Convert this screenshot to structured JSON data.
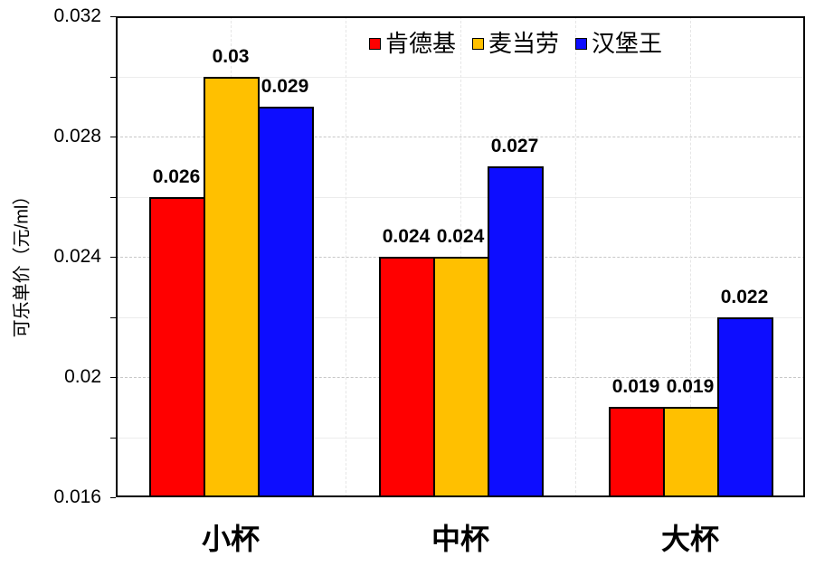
{
  "chart_data": {
    "type": "bar",
    "title": "",
    "xlabel": "",
    "ylabel": "可乐单价（元/ml）",
    "ylim": [
      0.016,
      0.032
    ],
    "y_ticks": [
      0.016,
      0.02,
      0.024,
      0.028,
      0.032
    ],
    "y_tick_labels": [
      "0.016",
      "0.02",
      "0.024",
      "0.028",
      "0.032"
    ],
    "y_minor_ticks": [
      0.018,
      0.022,
      0.026,
      0.03
    ],
    "grid": true,
    "legend_position": "top-right inside",
    "categories": [
      "小杯",
      "中杯",
      "大杯"
    ],
    "series": [
      {
        "name": "肯德基",
        "color": "#ff0000",
        "values": [
          0.026,
          0.024,
          0.019
        ],
        "labels": [
          "0.026",
          "0.024",
          "0.019"
        ]
      },
      {
        "name": "麦当劳",
        "color": "#ffc000",
        "values": [
          0.03,
          0.024,
          0.019
        ],
        "labels": [
          "0.03",
          "0.024",
          "0.019"
        ]
      },
      {
        "name": "汉堡王",
        "color": "#0d0dff",
        "values": [
          0.029,
          0.027,
          0.022
        ],
        "labels": [
          "0.029",
          "0.027",
          "0.022"
        ]
      }
    ]
  },
  "legend": {
    "items": [
      {
        "label": "肯德基",
        "color": "#ff0000"
      },
      {
        "label": "麦当劳",
        "color": "#ffc000"
      },
      {
        "label": "汉堡王",
        "color": "#0d0dff"
      }
    ]
  },
  "axis": {
    "ylabel": "可乐单价（元/ml）"
  }
}
